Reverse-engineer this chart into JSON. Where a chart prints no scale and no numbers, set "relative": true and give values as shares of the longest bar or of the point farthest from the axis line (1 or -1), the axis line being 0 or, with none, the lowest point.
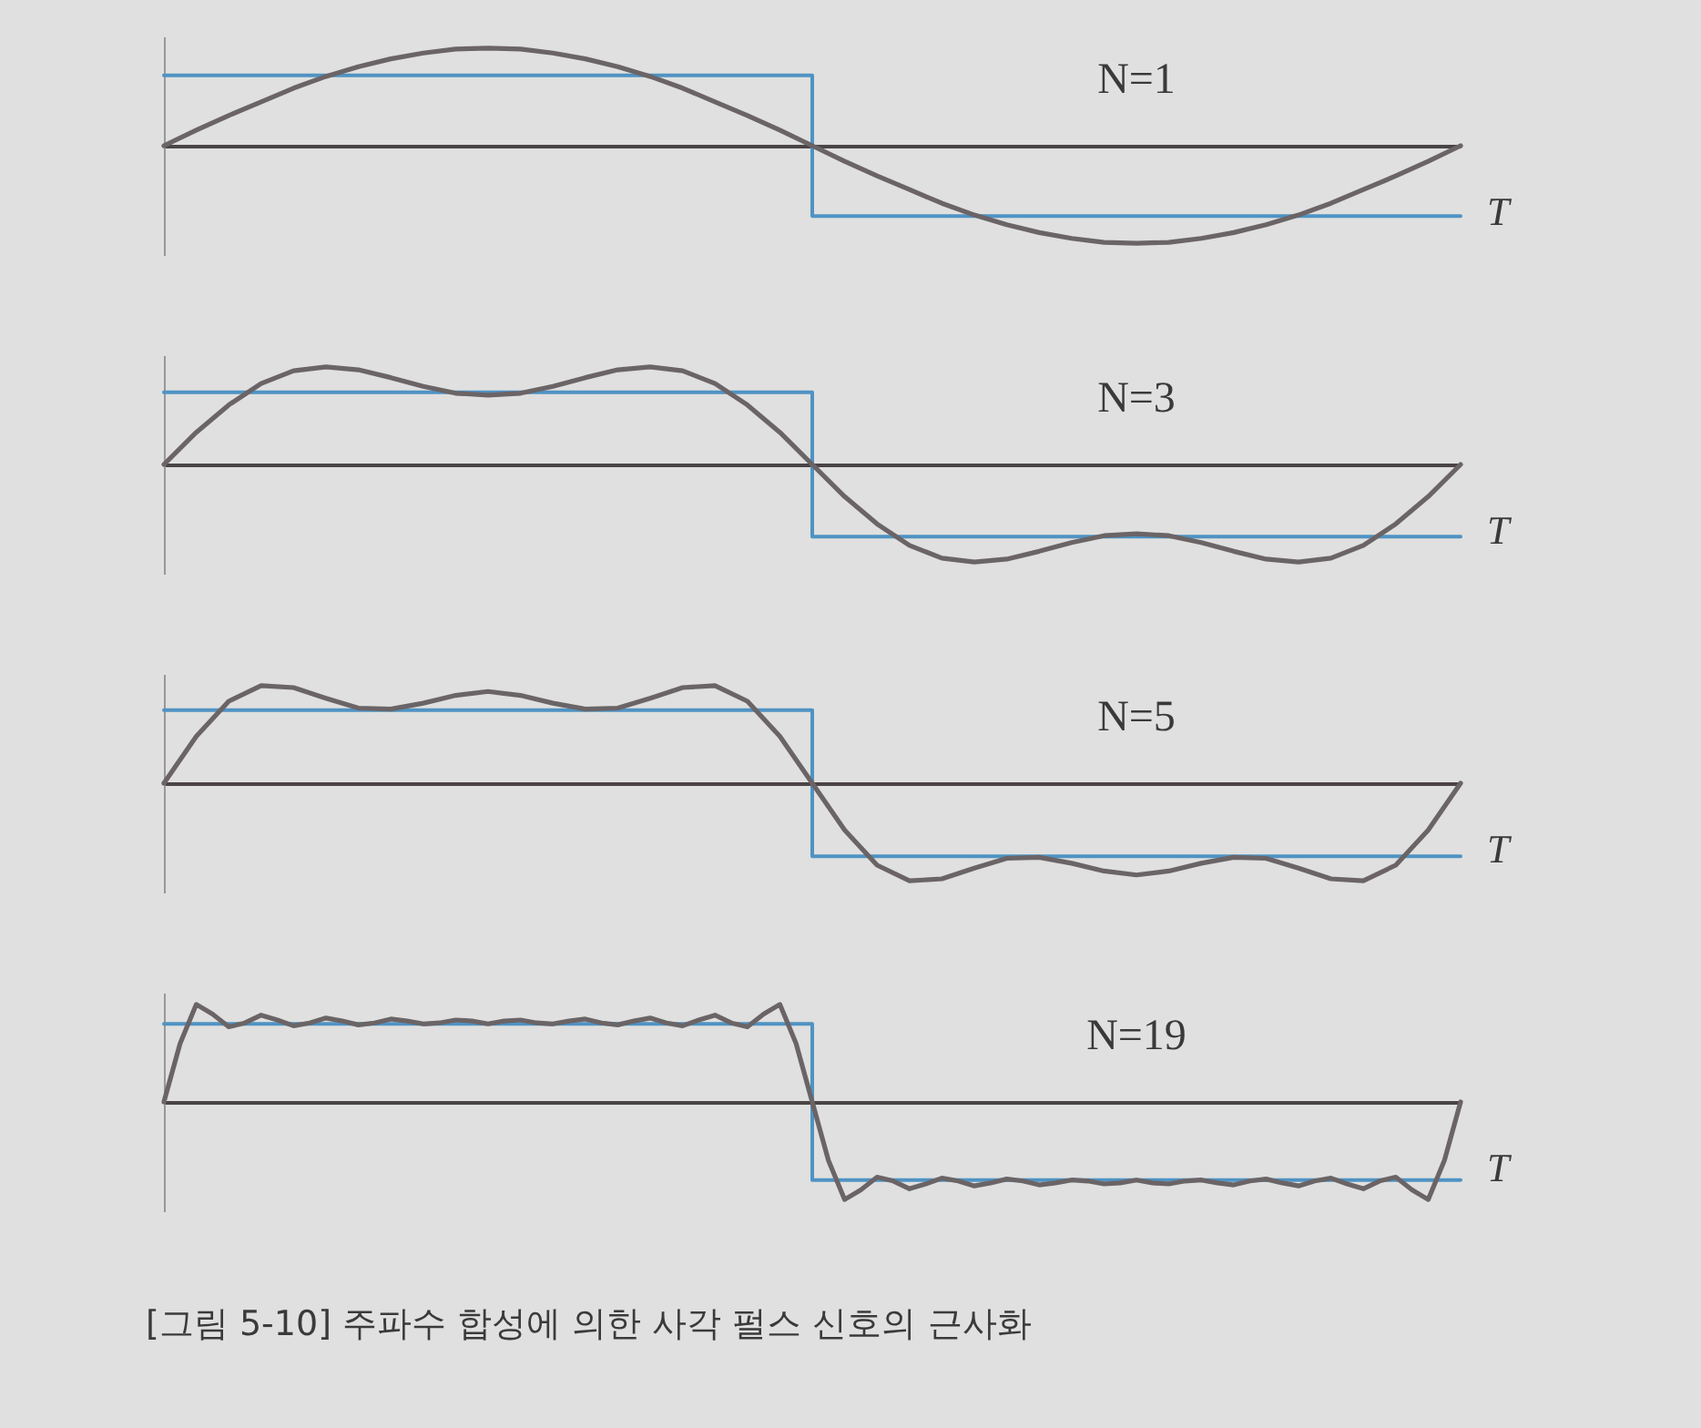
{
  "chart_data": [
    {
      "type": "line",
      "relative": true,
      "xlabel": "T",
      "annotations": [
        "N=1"
      ],
      "categories": [
        null,
        null,
        null,
        null,
        null,
        null,
        null,
        null,
        null,
        null,
        null,
        null,
        null,
        null,
        null,
        null,
        null,
        null,
        null,
        null,
        null,
        null,
        null,
        null,
        null,
        null,
        null,
        null,
        null,
        null,
        null,
        null,
        null,
        null,
        null,
        null,
        null,
        null,
        null,
        null,
        null
      ],
      "series": [
        {
          "type": "step",
          "color": "#4f93c4",
          "values": [
            0.72,
            0.72,
            0.72,
            0.72,
            0.72,
            0.72,
            0.72,
            0.72,
            0.72,
            0.72,
            0.72,
            0.72,
            0.72,
            0.72,
            0.72,
            0.72,
            0.72,
            0.72,
            0.72,
            0.72,
            -0.72,
            -0.72,
            -0.72,
            -0.72,
            -0.72,
            -0.72,
            -0.72,
            -0.72,
            -0.72,
            -0.72,
            -0.72,
            -0.72,
            -0.72,
            -0.72,
            -0.72,
            -0.72,
            -0.72,
            -0.72,
            -0.72,
            -0.72,
            -0.72
          ]
        },
        {
          "type": "line",
          "color": "#6b6466",
          "values": [
            0,
            0.16,
            0.31,
            0.45,
            0.59,
            0.71,
            0.81,
            0.89,
            0.95,
            0.99,
            1,
            0.99,
            0.95,
            0.89,
            0.81,
            0.71,
            0.59,
            0.45,
            0.31,
            0.16,
            0,
            -0.16,
            -0.31,
            -0.45,
            -0.59,
            -0.71,
            -0.81,
            -0.89,
            -0.95,
            -0.99,
            -1,
            -0.99,
            -0.95,
            -0.89,
            -0.81,
            -0.71,
            -0.59,
            -0.45,
            -0.31,
            -0.16,
            0
          ]
        }
      ]
    },
    {
      "type": "line",
      "relative": true,
      "xlabel": "T",
      "annotations": [
        "N=3"
      ],
      "categories": [
        null,
        null,
        null,
        null,
        null,
        null,
        null,
        null,
        null,
        null,
        null,
        null,
        null,
        null,
        null,
        null,
        null,
        null,
        null,
        null,
        null,
        null,
        null,
        null,
        null,
        null,
        null,
        null,
        null,
        null,
        null,
        null,
        null,
        null,
        null,
        null,
        null,
        null,
        null,
        null,
        null
      ],
      "series": [
        {
          "type": "step",
          "color": "#4f93c4",
          "values": [
            0.74,
            0.74,
            0.74,
            0.74,
            0.74,
            0.74,
            0.74,
            0.74,
            0.74,
            0.74,
            0.74,
            0.74,
            0.74,
            0.74,
            0.74,
            0.74,
            0.74,
            0.74,
            0.74,
            0.74,
            -0.74,
            -0.74,
            -0.74,
            -0.74,
            -0.74,
            -0.74,
            -0.74,
            -0.74,
            -0.74,
            -0.74,
            -0.74,
            -0.74,
            -0.74,
            -0.74,
            -0.74,
            -0.74,
            -0.74,
            -0.74,
            -0.74,
            -0.74,
            -0.74
          ]
        },
        {
          "type": "line",
          "color": "#6b6466",
          "values": [
            0,
            0.33,
            0.61,
            0.83,
            0.96,
            1,
            0.97,
            0.89,
            0.8,
            0.73,
            0.71,
            0.73,
            0.8,
            0.89,
            0.97,
            1,
            0.96,
            0.83,
            0.61,
            0.33,
            0,
            -0.33,
            -0.61,
            -0.83,
            -0.96,
            -1,
            -0.97,
            -0.89,
            -0.8,
            -0.73,
            -0.71,
            -0.73,
            -0.8,
            -0.89,
            -0.97,
            -1,
            -0.96,
            -0.83,
            -0.61,
            -0.33,
            0
          ]
        }
      ]
    },
    {
      "type": "line",
      "relative": true,
      "xlabel": "T",
      "annotations": [
        "N=5"
      ],
      "categories": [
        null,
        null,
        null,
        null,
        null,
        null,
        null,
        null,
        null,
        null,
        null,
        null,
        null,
        null,
        null,
        null,
        null,
        null,
        null,
        null,
        null,
        null,
        null,
        null,
        null,
        null,
        null,
        null,
        null,
        null,
        null,
        null,
        null,
        null,
        null,
        null,
        null,
        null,
        null,
        null,
        null
      ],
      "series": [
        {
          "type": "step",
          "color": "#4f93c4",
          "values": [
            0.75,
            0.75,
            0.75,
            0.75,
            0.75,
            0.75,
            0.75,
            0.75,
            0.75,
            0.75,
            0.75,
            0.75,
            0.75,
            0.75,
            0.75,
            0.75,
            0.75,
            0.75,
            0.75,
            0.75,
            -0.75,
            -0.75,
            -0.75,
            -0.75,
            -0.75,
            -0.75,
            -0.75,
            -0.75,
            -0.75,
            -0.75,
            -0.75,
            -0.75,
            -0.75,
            -0.75,
            -0.75,
            -0.75,
            -0.75,
            -0.75,
            -0.75,
            -0.75,
            -0.75
          ]
        },
        {
          "type": "line",
          "color": "#6b6466",
          "values": [
            0,
            0.48,
            0.84,
            1,
            0.98,
            0.87,
            0.77,
            0.76,
            0.82,
            0.9,
            0.94,
            0.9,
            0.82,
            0.76,
            0.77,
            0.87,
            0.98,
            1,
            0.84,
            0.48,
            0,
            -0.48,
            -0.84,
            -1,
            -0.98,
            -0.87,
            -0.77,
            -0.76,
            -0.82,
            -0.9,
            -0.94,
            -0.9,
            -0.82,
            -0.76,
            -0.77,
            -0.87,
            -0.98,
            -1,
            -0.84,
            -0.48,
            0
          ]
        }
      ]
    },
    {
      "type": "line",
      "relative": true,
      "xlabel": "T",
      "annotations": [
        "N=19",
        "[그림 5-10] 주파수 합성에 의한 사각 펄스 신호의 근사화"
      ],
      "categories": [
        null,
        null,
        null,
        null,
        null,
        null,
        null,
        null,
        null,
        null,
        null,
        null,
        null,
        null,
        null,
        null,
        null,
        null,
        null,
        null,
        null,
        null,
        null,
        null,
        null,
        null,
        null,
        null,
        null,
        null,
        null,
        null,
        null,
        null,
        null,
        null,
        null,
        null,
        null,
        null,
        null,
        null,
        null,
        null,
        null,
        null,
        null,
        null,
        null,
        null,
        null,
        null,
        null,
        null,
        null,
        null,
        null,
        null,
        null,
        null,
        null,
        null,
        null,
        null,
        null,
        null,
        null,
        null,
        null,
        null,
        null,
        null,
        null,
        null,
        null,
        null,
        null,
        null,
        null,
        null,
        null
      ],
      "series": [
        {
          "type": "step",
          "color": "#4f93c4",
          "values": [
            0.8,
            0.8,
            0.8,
            0.8,
            0.8,
            0.8,
            0.8,
            0.8,
            0.8,
            0.8,
            0.8,
            0.8,
            0.8,
            0.8,
            0.8,
            0.8,
            0.8,
            0.8,
            0.8,
            0.8,
            0.8,
            0.8,
            0.8,
            0.8,
            0.8,
            0.8,
            0.8,
            0.8,
            0.8,
            0.8,
            0.8,
            0.8,
            0.8,
            0.8,
            0.8,
            0.8,
            0.8,
            0.8,
            0.8,
            0.8,
            -0.8,
            -0.8,
            -0.8,
            -0.8,
            -0.8,
            -0.8,
            -0.8,
            -0.8,
            -0.8,
            -0.8,
            -0.8,
            -0.8,
            -0.8,
            -0.8,
            -0.8,
            -0.8,
            -0.8,
            -0.8,
            -0.8,
            -0.8,
            -0.8,
            -0.8,
            -0.8,
            -0.8,
            -0.8,
            -0.8,
            -0.8,
            -0.8,
            -0.8,
            -0.8,
            -0.8,
            -0.8,
            -0.8,
            -0.8,
            -0.8,
            -0.8,
            -0.8,
            -0.8,
            -0.8,
            -0.8,
            -0.8
          ]
        },
        {
          "type": "line",
          "color": "#6b6466",
          "values": [
            0,
            0.6,
            1,
            0.9,
            0.77,
            0.81,
            0.89,
            0.84,
            0.78,
            0.81,
            0.86,
            0.83,
            0.79,
            0.81,
            0.85,
            0.83,
            0.8,
            0.81,
            0.84,
            0.83,
            0.8,
            0.83,
            0.84,
            0.81,
            0.8,
            0.83,
            0.85,
            0.81,
            0.79,
            0.83,
            0.86,
            0.81,
            0.78,
            0.84,
            0.89,
            0.81,
            0.77,
            0.9,
            1,
            0.6,
            0,
            -0.6,
            -1,
            -0.9,
            -0.77,
            -0.81,
            -0.89,
            -0.84,
            -0.78,
            -0.81,
            -0.86,
            -0.83,
            -0.79,
            -0.81,
            -0.85,
            -0.83,
            -0.8,
            -0.81,
            -0.84,
            -0.83,
            -0.8,
            -0.83,
            -0.84,
            -0.81,
            -0.8,
            -0.83,
            -0.85,
            -0.81,
            -0.79,
            -0.83,
            -0.86,
            -0.81,
            -0.78,
            -0.84,
            -0.89,
            -0.81,
            -0.77,
            -0.9,
            -1,
            -0.6,
            0
          ]
        }
      ]
    }
  ]
}
